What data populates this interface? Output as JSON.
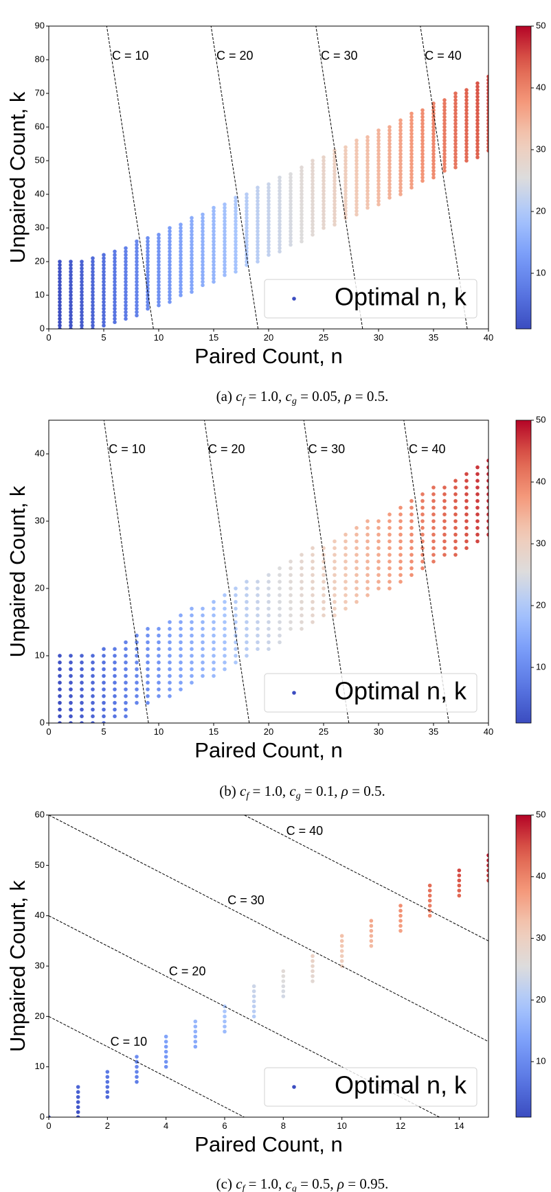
{
  "chart_data": [
    {
      "type": "scatter",
      "caption": {
        "label": "(a)",
        "terms": [
          {
            "sym": "c",
            "sub": "f",
            "val": "1.0"
          },
          {
            "sym": "c",
            "sub": "g",
            "val": "0.05"
          },
          {
            "sym": "ρ",
            "sub": "",
            "val": "0.5"
          }
        ]
      },
      "xlabel": "Paired Count, n",
      "ylabel": "Unpaired Count, k",
      "xlim": [
        0,
        40
      ],
      "ylim": [
        0,
        90
      ],
      "xticks": [
        0,
        5,
        10,
        15,
        20,
        25,
        30,
        35,
        40
      ],
      "yticks": [
        0,
        10,
        20,
        30,
        40,
        50,
        60,
        70,
        80,
        90
      ],
      "grid": false,
      "legend": {
        "label": "Optimal n, k",
        "position": "lower right",
        "marker_color": "#3b4cc0"
      },
      "colorbar": {
        "colormap": "coolwarm",
        "range": [
          1,
          50
        ],
        "ticks": [
          10,
          20,
          30,
          40,
          50
        ]
      },
      "point_columns": {
        "fields": [
          "n",
          "k_min",
          "k_max"
        ],
        "rows": [
          [
            1,
            0,
            20
          ],
          [
            2,
            0,
            20
          ],
          [
            3,
            0,
            20
          ],
          [
            4,
            0,
            21
          ],
          [
            5,
            1,
            22
          ],
          [
            6,
            2,
            23
          ],
          [
            7,
            3,
            24
          ],
          [
            8,
            4,
            26
          ],
          [
            9,
            6,
            27
          ],
          [
            10,
            7,
            28
          ],
          [
            11,
            8,
            30
          ],
          [
            12,
            10,
            31
          ],
          [
            13,
            11,
            33
          ],
          [
            14,
            13,
            34
          ],
          [
            15,
            14,
            36
          ],
          [
            16,
            16,
            37
          ],
          [
            17,
            17,
            39
          ],
          [
            18,
            19,
            40
          ],
          [
            19,
            20,
            42
          ],
          [
            20,
            22,
            43
          ],
          [
            21,
            23,
            45
          ],
          [
            22,
            25,
            46
          ],
          [
            23,
            26,
            48
          ],
          [
            24,
            28,
            50
          ],
          [
            25,
            30,
            51
          ],
          [
            26,
            31,
            53
          ],
          [
            27,
            33,
            54
          ],
          [
            28,
            34,
            56
          ],
          [
            29,
            36,
            57
          ],
          [
            30,
            37,
            59
          ],
          [
            31,
            39,
            60
          ],
          [
            32,
            40,
            62
          ],
          [
            33,
            42,
            64
          ],
          [
            34,
            44,
            65
          ],
          [
            35,
            45,
            67
          ],
          [
            36,
            47,
            68
          ],
          [
            37,
            48,
            70
          ],
          [
            38,
            50,
            71
          ],
          [
            39,
            51,
            73
          ],
          [
            40,
            53,
            75
          ]
        ]
      },
      "contours": [
        {
          "label": "C = 10",
          "points": [
            [
              9.52,
              0
            ],
            [
              7.4,
              45
            ],
            [
              5.27,
              90
            ]
          ],
          "label_at": [
            5.75,
            81
          ]
        },
        {
          "label": "C = 20",
          "points": [
            [
              19.04,
              0
            ],
            [
              16.9,
              45
            ],
            [
              14.76,
              90
            ]
          ],
          "label_at": [
            15.25,
            81
          ]
        },
        {
          "label": "C = 30",
          "points": [
            [
              28.55,
              0
            ],
            [
              26.4,
              45
            ],
            [
              24.3,
              90
            ]
          ],
          "label_at": [
            24.75,
            81
          ]
        },
        {
          "label": "C = 40",
          "points": [
            [
              38.07,
              0
            ],
            [
              35.9,
              45
            ],
            [
              33.8,
              90
            ]
          ],
          "label_at": [
            34.2,
            81
          ]
        }
      ]
    },
    {
      "type": "scatter",
      "caption": {
        "label": "(b)",
        "terms": [
          {
            "sym": "c",
            "sub": "f",
            "val": "1.0"
          },
          {
            "sym": "c",
            "sub": "g",
            "val": "0.1"
          },
          {
            "sym": "ρ",
            "sub": "",
            "val": "0.5"
          }
        ]
      },
      "xlabel": "Paired Count, n",
      "ylabel": "Unpaired Count, k",
      "xlim": [
        0,
        40
      ],
      "ylim": [
        0,
        45
      ],
      "xticks": [
        0,
        5,
        10,
        15,
        20,
        25,
        30,
        35,
        40
      ],
      "yticks": [
        0,
        10,
        20,
        30,
        40
      ],
      "grid": false,
      "legend": {
        "label": "Optimal n, k",
        "position": "lower right",
        "marker_color": "#3b4cc0"
      },
      "colorbar": {
        "colormap": "coolwarm",
        "range": [
          1,
          50
        ],
        "ticks": [
          10,
          20,
          30,
          40,
          50
        ]
      },
      "point_columns": {
        "fields": [
          "n",
          "k_min",
          "k_max"
        ],
        "rows": [
          [
            1,
            0,
            10
          ],
          [
            2,
            0,
            10
          ],
          [
            3,
            0,
            10
          ],
          [
            4,
            0,
            10
          ],
          [
            5,
            0,
            11
          ],
          [
            6,
            1,
            11
          ],
          [
            7,
            1,
            12
          ],
          [
            8,
            3,
            13
          ],
          [
            9,
            3,
            14
          ],
          [
            10,
            4,
            14
          ],
          [
            11,
            4,
            15
          ],
          [
            12,
            5,
            16
          ],
          [
            13,
            6,
            17
          ],
          [
            14,
            7,
            17
          ],
          [
            15,
            7,
            18
          ],
          [
            16,
            8,
            19
          ],
          [
            17,
            9,
            20
          ],
          [
            18,
            10,
            21
          ],
          [
            19,
            11,
            21
          ],
          [
            20,
            11,
            22
          ],
          [
            21,
            12,
            23
          ],
          [
            22,
            14,
            24
          ],
          [
            23,
            14,
            25
          ],
          [
            24,
            15,
            26
          ],
          [
            25,
            16,
            26
          ],
          [
            26,
            16,
            27
          ],
          [
            27,
            17,
            28
          ],
          [
            28,
            18,
            29
          ],
          [
            29,
            19,
            30
          ],
          [
            30,
            20,
            30
          ],
          [
            31,
            20,
            31
          ],
          [
            32,
            21,
            32
          ],
          [
            33,
            22,
            33
          ],
          [
            34,
            23,
            34
          ],
          [
            35,
            24,
            35
          ],
          [
            36,
            25,
            35
          ],
          [
            37,
            25,
            36
          ],
          [
            38,
            26,
            37
          ],
          [
            39,
            27,
            38
          ],
          [
            40,
            28,
            39
          ]
        ]
      },
      "contours": [
        {
          "label": "C = 10",
          "points": [
            [
              9.07,
              0
            ],
            [
              7.0,
              22.5
            ],
            [
              5.02,
              45
            ]
          ],
          "label_at": [
            5.45,
            40.6
          ]
        },
        {
          "label": "C = 20",
          "points": [
            [
              18.24,
              0
            ],
            [
              16.15,
              22.5
            ],
            [
              14.16,
              45
            ]
          ],
          "label_at": [
            14.5,
            40.6
          ]
        },
        {
          "label": "C = 30",
          "points": [
            [
              27.3,
              0
            ],
            [
              25.2,
              22.5
            ],
            [
              23.2,
              45
            ]
          ],
          "label_at": [
            23.6,
            40.6
          ]
        },
        {
          "label": "C = 40",
          "points": [
            [
              36.4,
              0
            ],
            [
              34.3,
              22.5
            ],
            [
              32.3,
              45
            ]
          ],
          "label_at": [
            32.75,
            40.6
          ]
        }
      ]
    },
    {
      "type": "scatter",
      "caption": {
        "label": "(c)",
        "terms": [
          {
            "sym": "c",
            "sub": "f",
            "val": "1.0"
          },
          {
            "sym": "c",
            "sub": "g",
            "val": "0.5"
          },
          {
            "sym": "ρ",
            "sub": "",
            "val": "0.95"
          }
        ]
      },
      "xlabel": "Paired Count, n",
      "ylabel": "Unpaired Count, k",
      "xlim": [
        0,
        15
      ],
      "ylim": [
        0,
        60
      ],
      "xticks": [
        0,
        2,
        4,
        6,
        8,
        10,
        12,
        14
      ],
      "yticks": [
        0,
        10,
        20,
        30,
        40,
        50,
        60
      ],
      "grid": false,
      "legend": {
        "label": "Optimal n, k",
        "position": "lower right",
        "marker_color": "#3b4cc0"
      },
      "colorbar": {
        "colormap": "coolwarm",
        "range": [
          1,
          50
        ],
        "ticks": [
          10,
          20,
          30,
          40,
          50
        ]
      },
      "point_columns": {
        "fields": [
          "n",
          "k_min",
          "k_max"
        ],
        "rows": [
          [
            0,
            0,
            0
          ],
          [
            1,
            0,
            6
          ],
          [
            2,
            4,
            9
          ],
          [
            3,
            7,
            12
          ],
          [
            4,
            10,
            16
          ],
          [
            5,
            14,
            19
          ],
          [
            6,
            17,
            22
          ],
          [
            7,
            20,
            26
          ],
          [
            8,
            24,
            29
          ],
          [
            9,
            27,
            32
          ],
          [
            10,
            30,
            36
          ],
          [
            11,
            34,
            39
          ],
          [
            12,
            37,
            42
          ],
          [
            13,
            40,
            46
          ],
          [
            14,
            44,
            49
          ],
          [
            15,
            47,
            52
          ]
        ]
      },
      "contours": [
        {
          "label": "C = 10",
          "points": [
            [
              0,
              20
            ],
            [
              6.67,
              0
            ]
          ],
          "label_at": [
            2.1,
            14.8
          ]
        },
        {
          "label": "C = 20",
          "points": [
            [
              0,
              40
            ],
            [
              13.33,
              0
            ]
          ],
          "label_at": [
            4.1,
            28.8
          ]
        },
        {
          "label": "C = 30",
          "points": [
            [
              0,
              60
            ],
            [
              15,
              15
            ]
          ],
          "label_at": [
            6.1,
            42.9
          ]
        },
        {
          "label": "C = 40",
          "points": [
            [
              6.67,
              60
            ],
            [
              15,
              35
            ]
          ],
          "label_at": [
            8.1,
            56.7
          ]
        }
      ]
    }
  ]
}
